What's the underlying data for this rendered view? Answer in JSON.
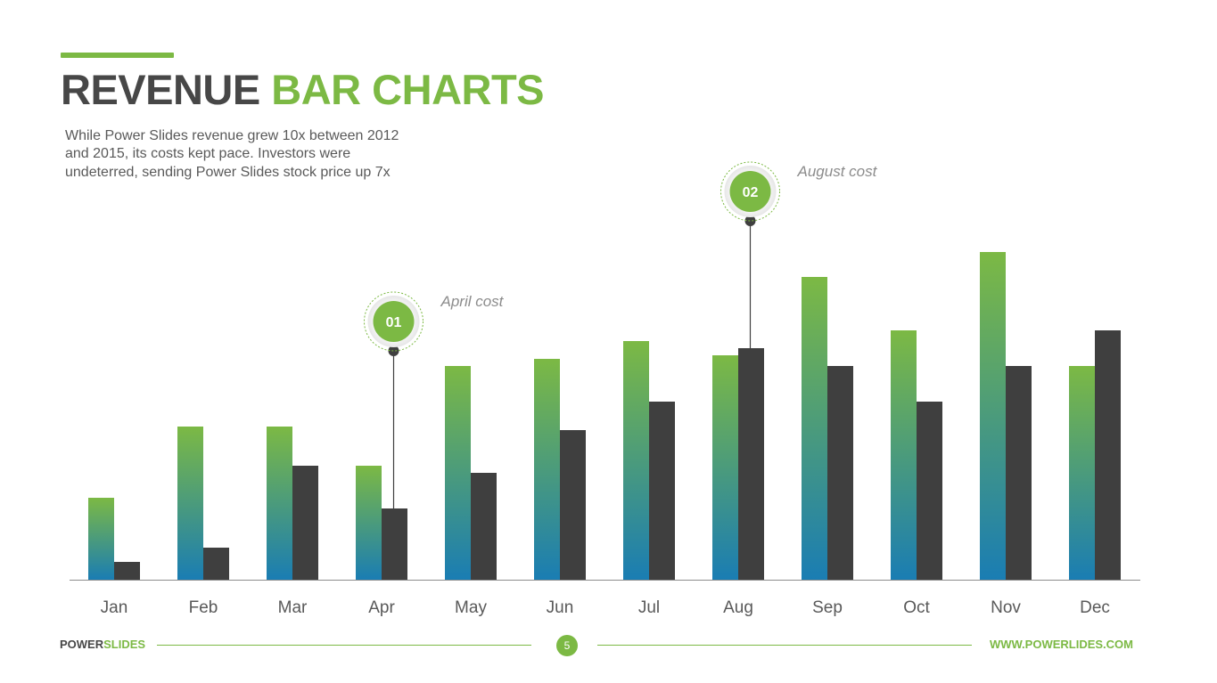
{
  "slide": {
    "title_part1": "REVENUE",
    "title_part2": "BAR CHARTS",
    "description": "While Power Slides revenue grew 10x between 2012 and 2015, its costs kept pace. Investors were undeterred, sending Power Slides stock price up 7x"
  },
  "colors": {
    "green": "#7cb944",
    "blue": "#1a7db3",
    "dark": "#3f3f3f",
    "title_dark": "#474747"
  },
  "chart_data": {
    "type": "bar",
    "categories": [
      "Jan",
      "Feb",
      "Mar",
      "Apr",
      "May",
      "Jun",
      "Jul",
      "Aug",
      "Sep",
      "Oct",
      "Nov",
      "Dec"
    ],
    "series": [
      {
        "values": [
          23,
          43,
          43,
          32,
          60,
          62,
          67,
          63,
          85,
          70,
          92,
          60
        ]
      },
      {
        "values": [
          5,
          9,
          32,
          20,
          30,
          42,
          50,
          65,
          60,
          50,
          60,
          70
        ]
      }
    ],
    "ylim": [
      0,
      100
    ],
    "grid": false,
    "legend": "none",
    "annotations": [
      {
        "number": "01",
        "label": "April cost",
        "category": "Apr"
      },
      {
        "number": "02",
        "label": "August cost",
        "category": "Aug"
      }
    ]
  },
  "footer": {
    "brand_part1": "POWER",
    "brand_part2": "SLIDES",
    "page_number": "5",
    "url": "WWW.POWERLIDES.COM"
  }
}
